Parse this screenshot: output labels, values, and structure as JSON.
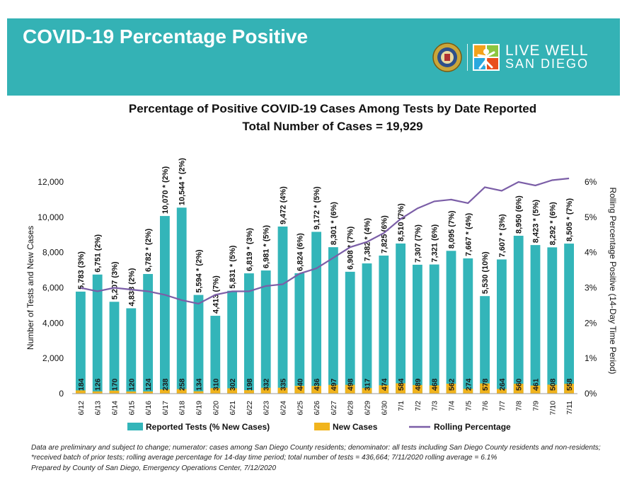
{
  "header": {
    "title": "COVID-19 Percentage Positive",
    "logo_line1": "LIVE WELL",
    "logo_line2": "SAN DIEGO"
  },
  "chart_data": {
    "type": "bar",
    "title": "Percentage of Positive COVID-19 Cases Among Tests by Date Reported",
    "subtitle": "Total Number of Cases = 19,929",
    "ylabel": "Number of Tests and New Cases",
    "y2label": "Rolling Percentage Positive (14-Day Time Period)",
    "ylim": [
      0,
      12000
    ],
    "yticks": [
      "0",
      "2,000",
      "4,000",
      "6,000",
      "8,000",
      "10,000",
      "12,000"
    ],
    "y2lim": [
      0,
      6
    ],
    "y2ticks": [
      "0%",
      "1%",
      "2%",
      "3%",
      "4%",
      "5%",
      "6%"
    ],
    "categories": [
      "6/12",
      "6/13",
      "6/14",
      "6/15",
      "6/16",
      "6/17",
      "6/18",
      "6/19",
      "6/20",
      "6/21",
      "6/22",
      "6/23",
      "6/24",
      "6/25",
      "6/26",
      "6/27",
      "6/28",
      "6/29",
      "6/30",
      "7/1",
      "7/2",
      "7/3",
      "7/4",
      "7/5",
      "7/6",
      "7/7",
      "7/8",
      "7/9",
      "7/10",
      "7/11"
    ],
    "series": [
      {
        "name": "Reported Tests (% New Cases)",
        "color": "#33b5b9",
        "values": [
          5783,
          6751,
          5207,
          4838,
          6782,
          10070,
          10544,
          5594,
          4413,
          5831,
          6819,
          6981,
          9472,
          6824,
          9172,
          8301,
          6908,
          7382,
          7825,
          8510,
          7307,
          7321,
          8095,
          7667,
          5530,
          7607,
          8950,
          8423,
          8292,
          8505
        ]
      },
      {
        "name": "New Cases",
        "color": "#f1b41d",
        "values": [
          184,
          126,
          170,
          120,
          124,
          238,
          258,
          134,
          310,
          302,
          198,
          332,
          335,
          440,
          436,
          497,
          498,
          317,
          474,
          584,
          489,
          468,
          562,
          274,
          578,
          264,
          560,
          461,
          508,
          558
        ]
      },
      {
        "name": "Rolling Percentage",
        "color": "#7b5ea7",
        "values": [
          3.0,
          2.9,
          3.0,
          2.95,
          2.9,
          2.8,
          2.65,
          2.55,
          2.8,
          2.9,
          2.9,
          3.05,
          3.1,
          3.4,
          3.55,
          3.85,
          4.15,
          4.3,
          4.55,
          4.95,
          5.25,
          5.45,
          5.5,
          5.4,
          5.85,
          5.75,
          6.0,
          5.9,
          6.05,
          6.1
        ]
      }
    ],
    "bar_labels": [
      "5,783 (3%)",
      "6,751 (2%)",
      "5,207 (3%)",
      "4,838 (2%)",
      "6,782 * (2%)",
      "10,070 * (2%)",
      "10,544 * (2%)",
      "5,594 * (2%)",
      "4,413 (7%)",
      "5,831 * (5%)",
      "6,819 * (3%)",
      "6,981 * (5%)",
      "9,472 (4%)",
      "6,824 (6%)",
      "9,172 * (5%)",
      "8,301 * (6%)",
      "6,908 * (7%)",
      "7,382 * (4%)",
      "7,825 (6%)",
      "8,510 (7%)",
      "7,307 (7%)",
      "7,321 (6%)",
      "8,095 (7%)",
      "7,667 * (4%)",
      "5,530 (10%)",
      "7,607 * (3%)",
      "8,950 (6%)",
      "8,423 * (5%)",
      "8,292 * (6%)",
      "8,505 * (7%)"
    ],
    "new_case_labels": [
      "184",
      "126",
      "170",
      "120",
      "124",
      "238",
      "258",
      "134",
      "310",
      "302",
      "198",
      "332",
      "335",
      "440",
      "436",
      "497",
      "498",
      "317",
      "474",
      "584",
      "489",
      "468",
      "562",
      "274",
      "578",
      "264",
      "560",
      "461",
      "508",
      "558"
    ],
    "legend": [
      "Reported Tests (% New Cases)",
      "New Cases",
      "Rolling Percentage"
    ],
    "legend_position": "bottom"
  },
  "footnotes": [
    "Data are preliminary and subject to change; numerator: cases among San Diego County residents; denominator: all tests including San Diego County residents and non-residents; *received batch of prior tests; rolling average percentage for 14-day time period; total number of tests = 436,664; 7/11/2020 rolling average = 6.1%",
    "Prepared by County of San Diego, Emergency Operations Center, 7/12/2020"
  ]
}
